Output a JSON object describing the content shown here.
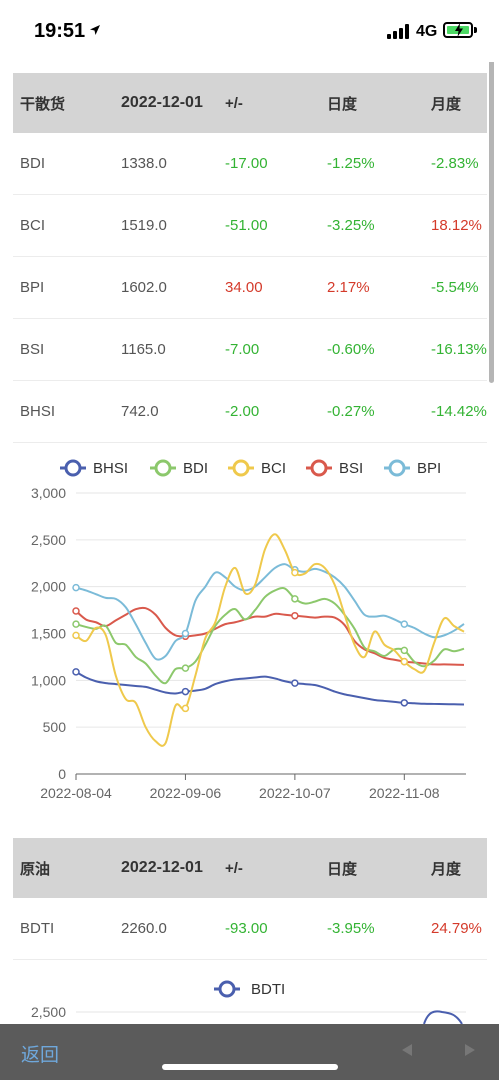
{
  "status": {
    "time": "19:51",
    "network": "4G"
  },
  "dry_bulk": {
    "header": {
      "name": "干散货",
      "date": "2022-12-01",
      "change": "+/-",
      "daily": "日度",
      "monthly": "月度"
    },
    "rows": [
      {
        "name": "BDI",
        "value": "1338.0",
        "change": "-17.00",
        "daily": "-1.25%",
        "monthly": "-2.83%"
      },
      {
        "name": "BCI",
        "value": "1519.0",
        "change": "-51.00",
        "daily": "-3.25%",
        "monthly": "18.12%"
      },
      {
        "name": "BPI",
        "value": "1602.0",
        "change": "34.00",
        "daily": "2.17%",
        "monthly": "-5.54%"
      },
      {
        "name": "BSI",
        "value": "1165.0",
        "change": "-7.00",
        "daily": "-0.60%",
        "monthly": "-16.13%"
      },
      {
        "name": "BHSI",
        "value": "742.0",
        "change": "-2.00",
        "daily": "-0.27%",
        "monthly": "-14.42%"
      }
    ]
  },
  "crude": {
    "header": {
      "name": "原油",
      "date": "2022-12-01",
      "change": "+/-",
      "daily": "日度",
      "monthly": "月度"
    },
    "rows": [
      {
        "name": "BDTI",
        "value": "2260.0",
        "change": "-93.00",
        "daily": "-3.95%",
        "monthly": "24.79%"
      }
    ]
  },
  "colors": {
    "up": "#d43a2a",
    "down": "#33b333",
    "BHSI": "#4a5fae",
    "BDI": "#8cc86c",
    "BCI": "#efc94c",
    "BSI": "#d9594c",
    "BPI": "#7bbbd8"
  },
  "chart_data": [
    {
      "type": "line",
      "title": "",
      "legend": [
        "BHSI",
        "BDI",
        "BCI",
        "BSI",
        "BPI"
      ],
      "legend_position": "top",
      "grid": true,
      "x_ticks": [
        "2022-08-04",
        "2022-09-06",
        "2022-10-07",
        "2022-11-08"
      ],
      "x": [
        0,
        3,
        6,
        9,
        12,
        15,
        18,
        21,
        24,
        27,
        30,
        33,
        36,
        39,
        42,
        45,
        48,
        51,
        54,
        57,
        60,
        63,
        66,
        69,
        72,
        75,
        78,
        81,
        84,
        87,
        90,
        93,
        96,
        99,
        102,
        105,
        108,
        111,
        114,
        117
      ],
      "y_ticks": [
        "0",
        "500",
        "1,000",
        "1,500",
        "2,000",
        "2,500",
        "3,000"
      ],
      "ylim": [
        0,
        3000
      ],
      "series": [
        {
          "name": "BHSI",
          "values": [
            1090,
            1030,
            990,
            970,
            960,
            950,
            940,
            930,
            900,
            870,
            860,
            880,
            890,
            910,
            960,
            990,
            1010,
            1020,
            1030,
            1040,
            1020,
            990,
            970,
            960,
            950,
            920,
            880,
            850,
            830,
            810,
            790,
            780,
            770,
            760,
            755,
            750,
            748,
            746,
            744,
            742
          ]
        },
        {
          "name": "BDI",
          "values": [
            1600,
            1570,
            1550,
            1580,
            1400,
            1380,
            1250,
            1180,
            1050,
            970,
            1120,
            1130,
            1200,
            1380,
            1580,
            1700,
            1760,
            1650,
            1750,
            1890,
            1960,
            1980,
            1870,
            1820,
            1840,
            1870,
            1820,
            1700,
            1550,
            1350,
            1310,
            1260,
            1330,
            1320,
            1200,
            1150,
            1210,
            1330,
            1310,
            1338
          ]
        },
        {
          "name": "BCI",
          "values": [
            1480,
            1420,
            1560,
            1480,
            1050,
            800,
            760,
            500,
            350,
            330,
            730,
            700,
            1050,
            1450,
            1620,
            2000,
            2200,
            1930,
            2020,
            2400,
            2560,
            2390,
            2150,
            2140,
            2240,
            2200,
            2020,
            1700,
            1380,
            1250,
            1520,
            1380,
            1320,
            1200,
            1120,
            1100,
            1400,
            1660,
            1580,
            1519
          ]
        },
        {
          "name": "BSI",
          "values": [
            1740,
            1650,
            1620,
            1580,
            1640,
            1700,
            1760,
            1770,
            1700,
            1560,
            1480,
            1470,
            1480,
            1500,
            1550,
            1600,
            1620,
            1650,
            1680,
            1680,
            1710,
            1700,
            1690,
            1680,
            1670,
            1680,
            1670,
            1590,
            1420,
            1330,
            1290,
            1240,
            1220,
            1200,
            1190,
            1180,
            1170,
            1170,
            1168,
            1165
          ]
        },
        {
          "name": "BPI",
          "values": [
            1990,
            1960,
            1920,
            1880,
            1870,
            1780,
            1600,
            1400,
            1230,
            1260,
            1420,
            1500,
            1850,
            2000,
            2150,
            2100,
            2000,
            1960,
            2000,
            2100,
            2200,
            2240,
            2180,
            2160,
            2190,
            2160,
            2100,
            2000,
            1850,
            1700,
            1680,
            1690,
            1650,
            1600,
            1560,
            1500,
            1460,
            1480,
            1530,
            1602
          ]
        }
      ]
    },
    {
      "type": "line",
      "title": "",
      "legend": [
        "BDTI"
      ],
      "legend_position": "top",
      "y_ticks": [
        "2,500"
      ],
      "series": [
        {
          "name": "BDTI"
        }
      ]
    }
  ],
  "bottom": {
    "back_label": "返回"
  }
}
